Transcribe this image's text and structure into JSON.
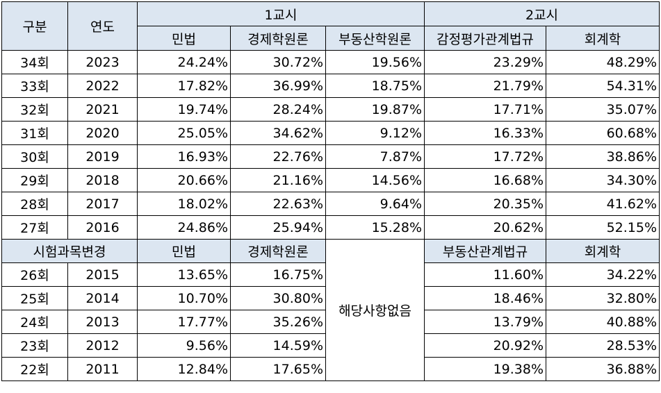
{
  "header": {
    "col_category": "구분",
    "col_year": "연도",
    "session1": "1교시",
    "session2": "2교시",
    "subjects_new": [
      "민법",
      "경제학원론",
      "부동산학원론",
      "감정평가관계법규",
      "회계학"
    ]
  },
  "rows_new": [
    {
      "round": "34회",
      "year": "2023",
      "vals": [
        "24.24%",
        "30.72%",
        "19.56%",
        "23.29%",
        "48.29%"
      ]
    },
    {
      "round": "33회",
      "year": "2022",
      "vals": [
        "17.82%",
        "36.99%",
        "18.75%",
        "21.79%",
        "54.31%"
      ]
    },
    {
      "round": "32회",
      "year": "2021",
      "vals": [
        "19.74%",
        "28.24%",
        "19.87%",
        "17.71%",
        "35.07%"
      ]
    },
    {
      "round": "31회",
      "year": "2020",
      "vals": [
        "25.05%",
        "34.62%",
        "9.12%",
        "16.33%",
        "60.68%"
      ]
    },
    {
      "round": "30회",
      "year": "2019",
      "vals": [
        "16.93%",
        "22.76%",
        "7.87%",
        "17.72%",
        "38.86%"
      ]
    },
    {
      "round": "29회",
      "year": "2018",
      "vals": [
        "20.66%",
        "21.16%",
        "14.56%",
        "16.68%",
        "34.30%"
      ]
    },
    {
      "round": "28회",
      "year": "2017",
      "vals": [
        "18.02%",
        "22.63%",
        "9.64%",
        "20.35%",
        "41.62%"
      ]
    },
    {
      "round": "27회",
      "year": "2016",
      "vals": [
        "24.86%",
        "25.94%",
        "15.28%",
        "20.62%",
        "52.15%"
      ]
    }
  ],
  "subheader": {
    "label": "시험과목변경",
    "subjects_old": [
      "민법",
      "경제학원론",
      "부동산관계법규",
      "회계학"
    ],
    "not_applicable": "해당사항없음"
  },
  "rows_old": [
    {
      "round": "26회",
      "year": "2015",
      "vals": [
        "13.65%",
        "16.75%",
        "11.60%",
        "34.22%"
      ]
    },
    {
      "round": "25회",
      "year": "2014",
      "vals": [
        "10.70%",
        "30.80%",
        "18.46%",
        "32.80%"
      ]
    },
    {
      "round": "24회",
      "year": "2013",
      "vals": [
        "17.77%",
        "35.26%",
        "13.79%",
        "40.88%"
      ]
    },
    {
      "round": "23회",
      "year": "2012",
      "vals": [
        "9.56%",
        "14.59%",
        "20.92%",
        "28.53%"
      ]
    },
    {
      "round": "22회",
      "year": "2011",
      "vals": [
        "12.84%",
        "17.65%",
        "19.38%",
        "36.88%"
      ]
    }
  ],
  "colors": {
    "header_bg": "#dce6f1",
    "border": "#000000"
  }
}
